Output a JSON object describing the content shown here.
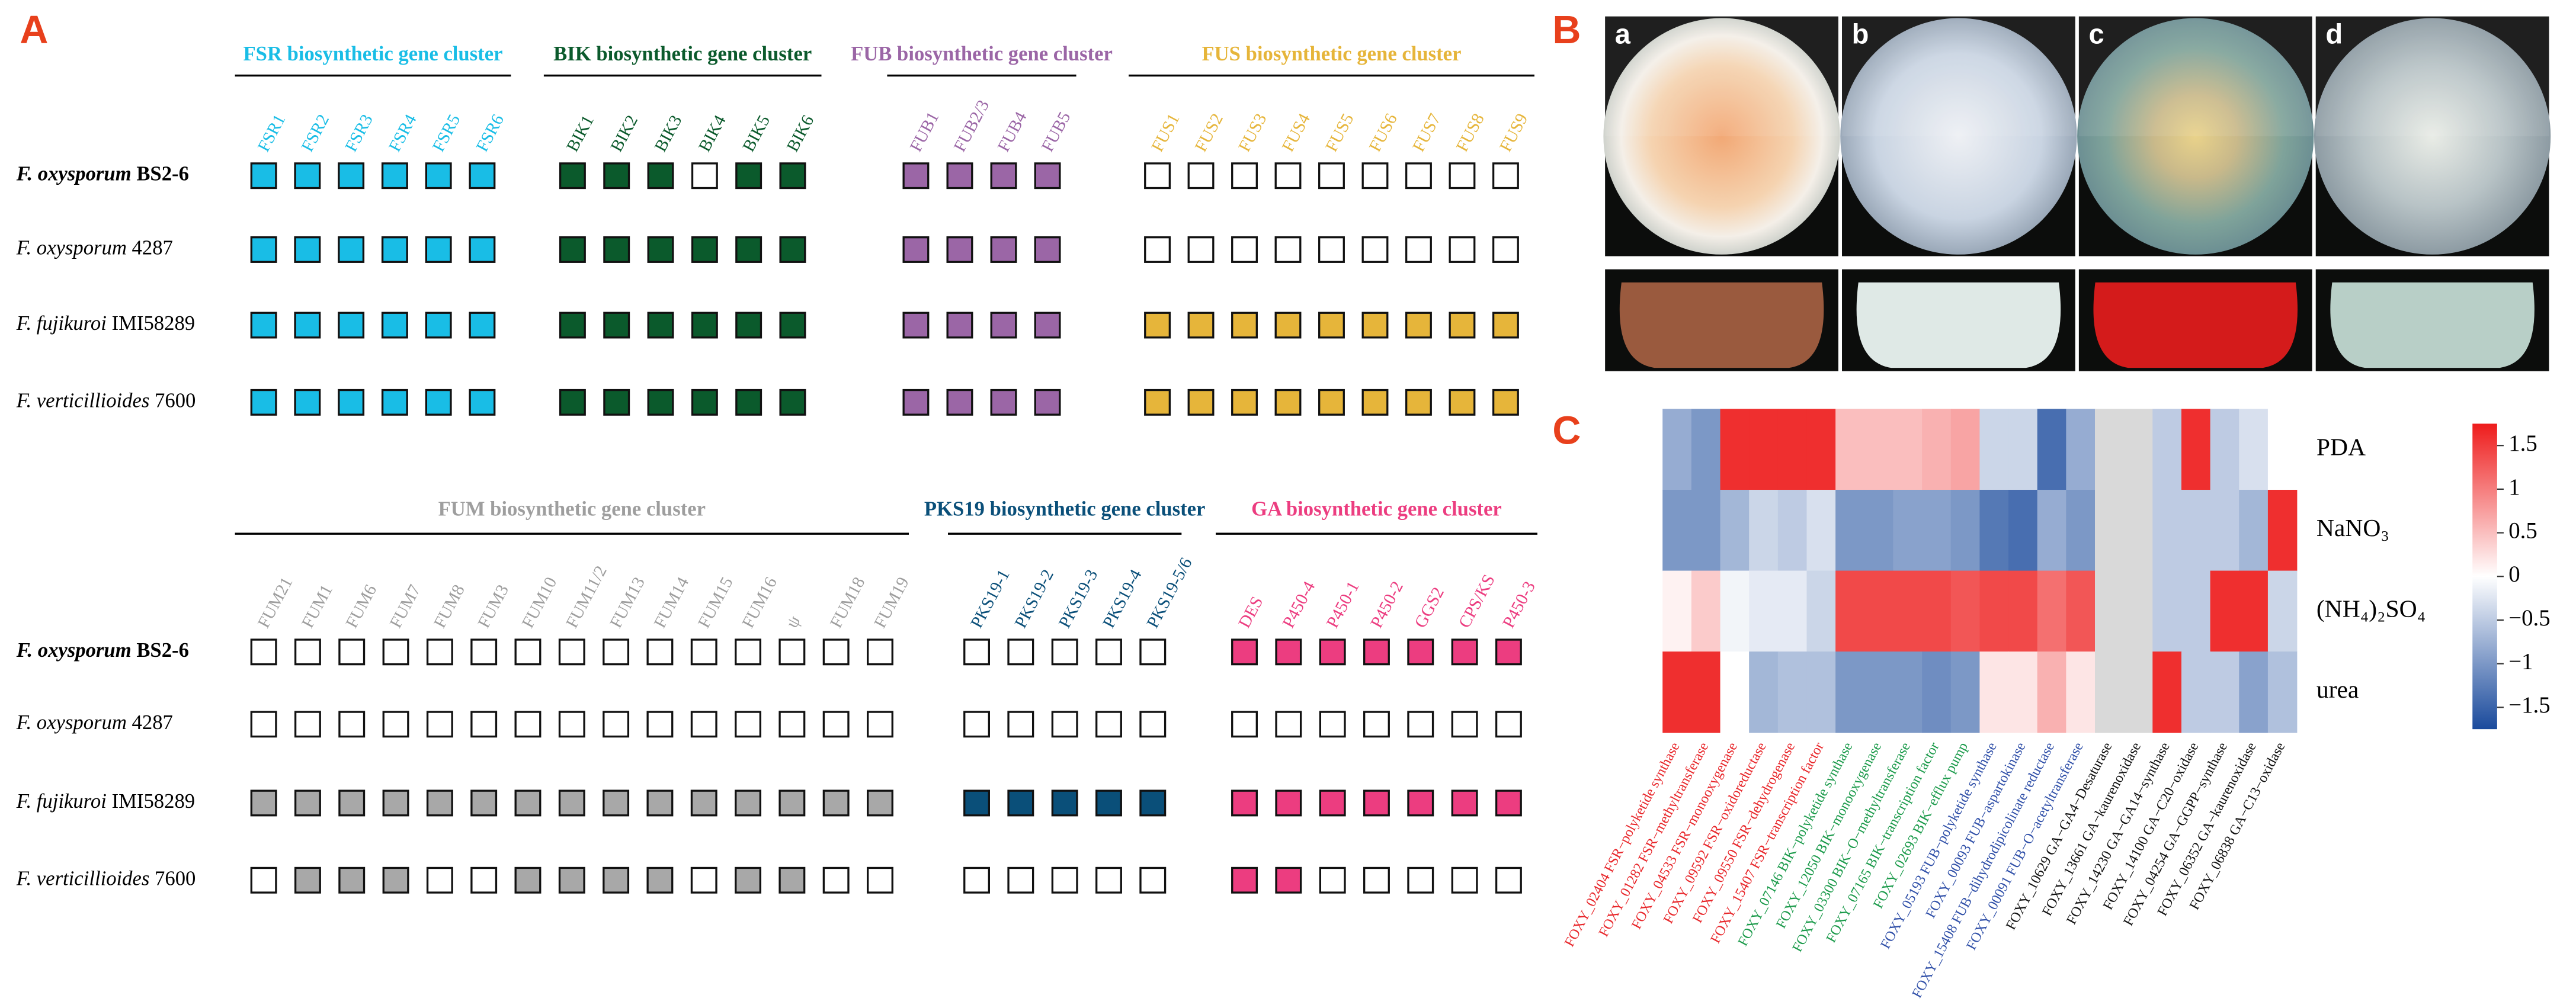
{
  "panel_a": {
    "label": "A",
    "organisms": [
      {
        "species": "F. oxysporum",
        "strain": "BS2-6"
      },
      {
        "species": "F. oxysporum",
        "strain": "4287"
      },
      {
        "species": "F. fujikuroi",
        "strain": "IMI58289"
      },
      {
        "species": "F. verticillioides",
        "strain": "7600"
      }
    ],
    "sections": [
      {
        "clusters": [
          {
            "title": "FSR biosynthetic gene cluster",
            "color": "#19bde6",
            "genes": [
              "FSR1",
              "FSR2",
              "FSR3",
              "FSR4",
              "FSR5",
              "FSR6"
            ],
            "presence": [
              [
                1,
                1,
                1,
                1,
                1,
                1
              ],
              [
                1,
                1,
                1,
                1,
                1,
                1
              ],
              [
                1,
                1,
                1,
                1,
                1,
                1
              ],
              [
                1,
                1,
                1,
                1,
                1,
                1
              ]
            ]
          },
          {
            "title": "BIK biosynthetic gene cluster",
            "color": "#0b5a2c",
            "genes": [
              "BIK1",
              "BIK2",
              "BIK3",
              "BIK4",
              "BIK5",
              "BIK6"
            ],
            "presence": [
              [
                1,
                1,
                1,
                0,
                1,
                1
              ],
              [
                1,
                1,
                1,
                1,
                1,
                1
              ],
              [
                1,
                1,
                1,
                1,
                1,
                1
              ],
              [
                1,
                1,
                1,
                1,
                1,
                1
              ]
            ]
          },
          {
            "title": "FUB biosynthetic gene cluster",
            "color": "#9b66a6",
            "genes": [
              "FUB1",
              "FUB2/3",
              "FUB4",
              "FUB5"
            ],
            "presence": [
              [
                1,
                1,
                1,
                1
              ],
              [
                1,
                1,
                1,
                1
              ],
              [
                1,
                1,
                1,
                1
              ],
              [
                1,
                1,
                1,
                1
              ]
            ]
          },
          {
            "title": "FUS biosynthetic gene cluster",
            "color": "#e6b53a",
            "genes": [
              "FUS1",
              "FUS2",
              "FUS3",
              "FUS4",
              "FUS5",
              "FUS6",
              "FUS7",
              "FUS8",
              "FUS9"
            ],
            "presence": [
              [
                0,
                0,
                0,
                0,
                0,
                0,
                0,
                0,
                0
              ],
              [
                0,
                0,
                0,
                0,
                0,
                0,
                0,
                0,
                0
              ],
              [
                1,
                1,
                1,
                1,
                1,
                1,
                1,
                1,
                1
              ],
              [
                1,
                1,
                1,
                1,
                1,
                1,
                1,
                1,
                1
              ]
            ]
          }
        ]
      },
      {
        "clusters": [
          {
            "title": "FUM biosynthetic gene cluster",
            "color": "#9e9e9e",
            "fill": "#a8a8a8",
            "genes": [
              "FUM21",
              "FUM1",
              "FUM6",
              "FUM7",
              "FUM8",
              "FUM3",
              "FUM10",
              "FUM11/2",
              "FUM13",
              "FUM14",
              "FUM15",
              "FUM16",
              "ψ",
              "FUM18",
              "FUM19"
            ],
            "presence": [
              [
                0,
                0,
                0,
                0,
                0,
                0,
                0,
                0,
                0,
                0,
                0,
                0,
                0,
                0,
                0
              ],
              [
                0,
                0,
                0,
                0,
                0,
                0,
                0,
                0,
                0,
                0,
                0,
                0,
                0,
                0,
                0
              ],
              [
                1,
                1,
                1,
                1,
                1,
                1,
                1,
                1,
                1,
                1,
                1,
                1,
                1,
                1,
                1
              ],
              [
                0,
                1,
                1,
                1,
                0,
                0,
                1,
                1,
                1,
                1,
                0,
                1,
                1,
                0,
                0
              ]
            ]
          },
          {
            "title": "PKS19 biosynthetic gene cluster",
            "color": "#0a4f79",
            "genes": [
              "PKS19-1",
              "PKS19-2",
              "PKS19-3",
              "PKS19-4",
              "PKS19-5/6"
            ],
            "presence": [
              [
                0,
                0,
                0,
                0,
                0
              ],
              [
                0,
                0,
                0,
                0,
                0
              ],
              [
                1,
                1,
                1,
                1,
                1
              ],
              [
                0,
                0,
                0,
                0,
                0
              ]
            ]
          },
          {
            "title": "GA biosynthetic gene cluster",
            "color": "#ec3d80",
            "genes": [
              "DES",
              "P450-4",
              "P450-1",
              "P450-2",
              "GGS2",
              "CPS/KS",
              "P450-3"
            ],
            "presence": [
              [
                1,
                1,
                1,
                1,
                1,
                1,
                1
              ],
              [
                0,
                0,
                0,
                0,
                0,
                0,
                0
              ],
              [
                1,
                1,
                1,
                1,
                1,
                1,
                1
              ],
              [
                1,
                1,
                0,
                0,
                0,
                0,
                0
              ]
            ]
          }
        ]
      }
    ]
  },
  "panel_b": {
    "label": "B",
    "subpanels": [
      "a",
      "b",
      "c",
      "d"
    ]
  },
  "panel_c": {
    "label": "C",
    "rows": [
      "PDA",
      "NaNO₃",
      "(NH₄)₂SO₄",
      "urea"
    ],
    "columns": [
      "FOXY_02404 FSR−polyketide synthase",
      "FOXY_01282 FSR−methyltransferase",
      "FOXY_04533 FSR−monooxygenase",
      "FOXY_09592 FSR−oxidoreductase",
      "FOXY_09550 FSR−dehydrogenase",
      "FOXY_15407 FSR−transcription factor",
      "FOXY_07146 BIK−polyketide synthase",
      "FOXY_12050 BIK−monooxygenase",
      "FOXY_03300 BIK−O−methyltransferase",
      "FOXY_07165 BIK−transcription factor",
      "FOXY_02693 BIK−efflux pump",
      "FOXY_05193 FUB−polyketide synthase",
      "FOXY_00093 FUB−aspartokinase",
      "FOXY_15408 FUB−dihydrodipicolinate reductase",
      "FOXY_00091 FUB−O−acetyltransferase",
      "FOXY_10629 GA−GA4−Desaturase",
      "FOXY_13661 GA−kaurenoxidase",
      "FOXY_14230 GA−GA14−synthase",
      "FOXY_14100 GA−C20−oxidase",
      "FOXY_04254 GA−GGPP−synthase",
      "FOXY_06352 GA−kaurenoxidase",
      "FOXY_06838 GA−C13−oxidase"
    ],
    "column_colors": [
      "#e8262a",
      "#e8262a",
      "#e8262a",
      "#e8262a",
      "#e8262a",
      "#e8262a",
      "#1a9a4a",
      "#1a9a4a",
      "#1a9a4a",
      "#1a9a4a",
      "#1a9a4a",
      "#2f4fa8",
      "#2f4fa8",
      "#2f4fa8",
      "#2f4fa8",
      "#111111",
      "#111111",
      "#111111",
      "#111111",
      "#111111",
      "#111111",
      "#111111"
    ],
    "values": [
      [
        -0.8,
        -1.0,
        1.6,
        1.6,
        1.6,
        1.6,
        0.5,
        0.5,
        0.5,
        0.6,
        0.7,
        -0.4,
        -0.4,
        -1.4,
        -0.8,
        null,
        null,
        -0.5,
        1.6,
        -0.5,
        -0.3,
        0
      ],
      [
        -1.0,
        -1.0,
        -0.7,
        -0.4,
        -0.5,
        -0.3,
        -1.0,
        -1.0,
        -0.9,
        -0.9,
        -1.0,
        -1.3,
        -1.4,
        -0.8,
        -1.0,
        null,
        null,
        -0.5,
        -0.5,
        -0.5,
        -0.7,
        1.6
      ],
      [
        0.1,
        0.4,
        -0.1,
        -0.2,
        -0.2,
        -0.4,
        1.4,
        1.4,
        1.4,
        1.4,
        1.3,
        1.4,
        1.4,
        1.1,
        1.3,
        null,
        null,
        -0.5,
        -0.5,
        1.6,
        1.6,
        -0.4
      ],
      [
        1.6,
        1.6,
        0,
        -0.7,
        -0.6,
        -0.6,
        -1.0,
        -1.0,
        -1.0,
        -1.1,
        -1.0,
        0.2,
        0.2,
        0.6,
        0.2,
        null,
        null,
        1.6,
        -0.5,
        -0.5,
        -0.9,
        -0.6
      ]
    ],
    "colorbar_lim": [
      -1.75,
      1.75
    ],
    "colorbar_ticks": [
      1.5,
      1,
      0.5,
      0,
      {
        "value": -0.5,
        "label": "−0.5"
      },
      {
        "value": -1,
        "label": "−1"
      },
      {
        "value": -1.5,
        "label": "−1.5"
      }
    ],
    "colors": {
      "low": "#1a4a9c",
      "mid": "#ffffff",
      "high": "#ee1c1c"
    },
    "na_color": "#d9d9d9"
  }
}
